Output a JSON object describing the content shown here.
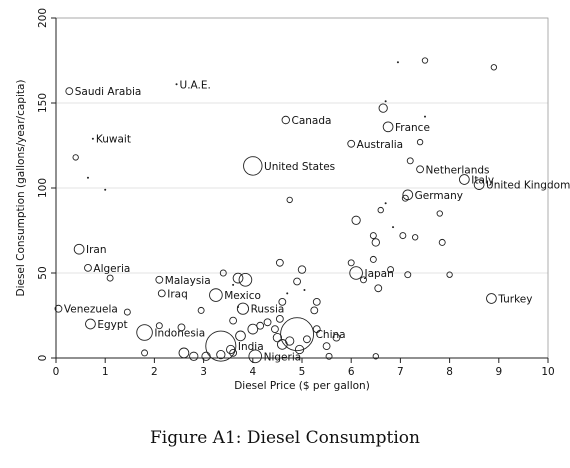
{
  "figure": {
    "caption": "Figure A1: Diesel Consumption"
  },
  "chart_data": {
    "type": "scatter",
    "title": "",
    "xlabel": "Diesel Price ($ per gallon)",
    "ylabel": "Diesel Consumption (gallons/year/capita)",
    "xlim": [
      0,
      10
    ],
    "ylim": [
      0,
      200
    ],
    "xticks": [
      "0",
      "1",
      "2",
      "3",
      "4",
      "5",
      "6",
      "7",
      "8",
      "9",
      "10"
    ],
    "yticks": [
      "0",
      "50",
      "100",
      "150",
      "200"
    ],
    "xtick_values": [
      0,
      1,
      2,
      3,
      4,
      5,
      6,
      7,
      8,
      9,
      10
    ],
    "ytick_values": [
      0,
      50,
      100,
      150,
      200
    ],
    "grid": "horizontal",
    "marker_note": "hollow circles scaled by country size",
    "points": [
      {
        "x": 0.27,
        "y": 157,
        "size": 1,
        "label": "Saudi Arabia"
      },
      {
        "x": 2.45,
        "y": 161,
        "size": 0,
        "label": "U.A.E."
      },
      {
        "x": 4.67,
        "y": 140,
        "size": 1.2,
        "label": "Canada"
      },
      {
        "x": 0.75,
        "y": 129,
        "size": 0,
        "label": "Kuwait"
      },
      {
        "x": 6.0,
        "y": 126,
        "size": 1,
        "label": "Australia"
      },
      {
        "x": 6.75,
        "y": 136,
        "size": 2,
        "label": "France"
      },
      {
        "x": 4.0,
        "y": 113,
        "size": 5,
        "label": "United States"
      },
      {
        "x": 7.4,
        "y": 111,
        "size": 1,
        "label": "Netherlands"
      },
      {
        "x": 8.3,
        "y": 105,
        "size": 2,
        "label": "Italy"
      },
      {
        "x": 8.6,
        "y": 102,
        "size": 2,
        "label": "United Kingdom"
      },
      {
        "x": 7.15,
        "y": 96,
        "size": 2,
        "label": "Germany"
      },
      {
        "x": 0.47,
        "y": 64,
        "size": 2,
        "label": "Iran"
      },
      {
        "x": 0.65,
        "y": 53,
        "size": 1,
        "label": "Algeria"
      },
      {
        "x": 2.1,
        "y": 46,
        "size": 1,
        "label": "Malaysia"
      },
      {
        "x": 6.1,
        "y": 50,
        "size": 3,
        "label": "Japan"
      },
      {
        "x": 2.15,
        "y": 38,
        "size": 1,
        "label": "Iraq"
      },
      {
        "x": 3.25,
        "y": 37,
        "size": 3,
        "label": "Mexico"
      },
      {
        "x": 8.85,
        "y": 35,
        "size": 2,
        "label": "Turkey"
      },
      {
        "x": 0.05,
        "y": 29,
        "size": 1,
        "label": "Venezuela"
      },
      {
        "x": 3.8,
        "y": 29,
        "size": 2.5,
        "label": "Russia"
      },
      {
        "x": 0.7,
        "y": 20,
        "size": 2,
        "label": "Egypt"
      },
      {
        "x": 1.8,
        "y": 15,
        "size": 4,
        "label": "Indonesia"
      },
      {
        "x": 4.9,
        "y": 14,
        "size": 10,
        "label": "China"
      },
      {
        "x": 3.35,
        "y": 7,
        "size": 9,
        "label": "India"
      },
      {
        "x": 4.05,
        "y": 1,
        "size": 3,
        "label": "Nigeria"
      },
      {
        "x": 0.4,
        "y": 118,
        "size": 0.5
      },
      {
        "x": 0.65,
        "y": 106,
        "size": 0
      },
      {
        "x": 1.0,
        "y": 99,
        "size": 0
      },
      {
        "x": 1.1,
        "y": 47,
        "size": 0.7
      },
      {
        "x": 1.45,
        "y": 27,
        "size": 0.7
      },
      {
        "x": 1.8,
        "y": 3,
        "size": 0.7
      },
      {
        "x": 3.4,
        "y": 50,
        "size": 0.7
      },
      {
        "x": 3.7,
        "y": 47,
        "size": 2
      },
      {
        "x": 3.85,
        "y": 46,
        "size": 3
      },
      {
        "x": 3.6,
        "y": 43,
        "size": 0
      },
      {
        "x": 4.55,
        "y": 56,
        "size": 1
      },
      {
        "x": 4.75,
        "y": 93,
        "size": 0.5
      },
      {
        "x": 4.9,
        "y": 45,
        "size": 1
      },
      {
        "x": 5.0,
        "y": 52,
        "size": 1.2
      },
      {
        "x": 5.05,
        "y": 40,
        "size": 0
      },
      {
        "x": 5.3,
        "y": 33,
        "size": 1
      },
      {
        "x": 5.25,
        "y": 28,
        "size": 1
      },
      {
        "x": 4.6,
        "y": 33,
        "size": 1
      },
      {
        "x": 4.7,
        "y": 38,
        "size": 0
      },
      {
        "x": 3.6,
        "y": 22,
        "size": 1
      },
      {
        "x": 4.15,
        "y": 19,
        "size": 1
      },
      {
        "x": 4.0,
        "y": 17,
        "size": 2
      },
      {
        "x": 3.75,
        "y": 13,
        "size": 2
      },
      {
        "x": 4.3,
        "y": 21,
        "size": 1
      },
      {
        "x": 4.45,
        "y": 17,
        "size": 1
      },
      {
        "x": 4.55,
        "y": 23,
        "size": 1
      },
      {
        "x": 4.5,
        "y": 12,
        "size": 1.5
      },
      {
        "x": 4.6,
        "y": 8,
        "size": 2
      },
      {
        "x": 4.75,
        "y": 10,
        "size": 1.5
      },
      {
        "x": 4.95,
        "y": 5,
        "size": 1.5
      },
      {
        "x": 5.1,
        "y": 11,
        "size": 1
      },
      {
        "x": 5.3,
        "y": 17,
        "size": 1
      },
      {
        "x": 5.5,
        "y": 7,
        "size": 1
      },
      {
        "x": 5.7,
        "y": 12,
        "size": 1
      },
      {
        "x": 5.55,
        "y": 1,
        "size": 0.7
      },
      {
        "x": 3.05,
        "y": 1,
        "size": 1.5
      },
      {
        "x": 3.35,
        "y": 2,
        "size": 1.5
      },
      {
        "x": 2.6,
        "y": 3,
        "size": 2
      },
      {
        "x": 2.8,
        "y": 1,
        "size": 1.5
      },
      {
        "x": 3.55,
        "y": 5,
        "size": 1.5
      },
      {
        "x": 3.6,
        "y": 3,
        "size": 1
      },
      {
        "x": 2.1,
        "y": 19,
        "size": 0.7
      },
      {
        "x": 2.55,
        "y": 18,
        "size": 1
      },
      {
        "x": 2.95,
        "y": 28,
        "size": 0.7
      },
      {
        "x": 3.7,
        "y": 30,
        "size": 0
      },
      {
        "x": 6.1,
        "y": 81,
        "size": 1.5
      },
      {
        "x": 6.0,
        "y": 56,
        "size": 0.7
      },
      {
        "x": 6.25,
        "y": 46,
        "size": 0.7
      },
      {
        "x": 6.45,
        "y": 72,
        "size": 0.7
      },
      {
        "x": 6.5,
        "y": 68,
        "size": 1.2
      },
      {
        "x": 6.45,
        "y": 58,
        "size": 0.7
      },
      {
        "x": 6.55,
        "y": 41,
        "size": 1
      },
      {
        "x": 6.6,
        "y": 87,
        "size": 0.5
      },
      {
        "x": 6.7,
        "y": 91,
        "size": 0
      },
      {
        "x": 6.65,
        "y": 147,
        "size": 1.5
      },
      {
        "x": 6.7,
        "y": 151,
        "size": 0
      },
      {
        "x": 6.8,
        "y": 52,
        "size": 0.7
      },
      {
        "x": 6.85,
        "y": 77,
        "size": 0
      },
      {
        "x": 6.95,
        "y": 174,
        "size": 0
      },
      {
        "x": 7.05,
        "y": 72,
        "size": 0.7
      },
      {
        "x": 7.1,
        "y": 94,
        "size": 0.7
      },
      {
        "x": 7.15,
        "y": 49,
        "size": 0.7
      },
      {
        "x": 7.2,
        "y": 116,
        "size": 0.7
      },
      {
        "x": 7.3,
        "y": 71,
        "size": 0.5
      },
      {
        "x": 7.4,
        "y": 127,
        "size": 0.5
      },
      {
        "x": 7.5,
        "y": 175,
        "size": 0.5
      },
      {
        "x": 7.5,
        "y": 142,
        "size": 0
      },
      {
        "x": 7.8,
        "y": 85,
        "size": 0.5
      },
      {
        "x": 7.85,
        "y": 68,
        "size": 0.7
      },
      {
        "x": 8.0,
        "y": 49,
        "size": 0.5
      },
      {
        "x": 8.9,
        "y": 171,
        "size": 0.5
      },
      {
        "x": 6.5,
        "y": 1,
        "size": 0.5
      }
    ]
  }
}
